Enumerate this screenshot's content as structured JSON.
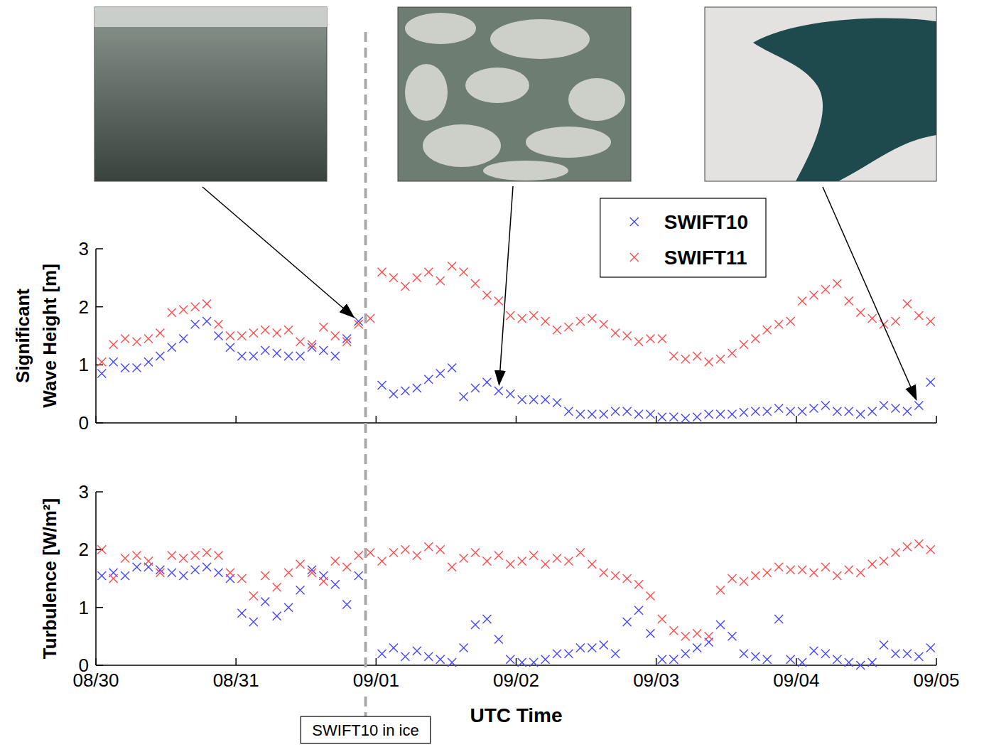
{
  "chart_data": [
    {
      "type": "scatter",
      "ylabel": [
        "Significant",
        "Wave Height [m]"
      ],
      "x": [
        1,
        3,
        5,
        7,
        9,
        11,
        13,
        15,
        17,
        19,
        21,
        23,
        25,
        27,
        29,
        31,
        33,
        35,
        37,
        39,
        41,
        43,
        45,
        47,
        49,
        51,
        53,
        55,
        57,
        59,
        61,
        63,
        65,
        67,
        69,
        71,
        73,
        75,
        77,
        79,
        81,
        83,
        85,
        87,
        89,
        91,
        93,
        95,
        97,
        99,
        101,
        103,
        105,
        107,
        109,
        111,
        113,
        115,
        117,
        119,
        121,
        123,
        125,
        127,
        129,
        131,
        133,
        135,
        137,
        139,
        141,
        143
      ],
      "xlim": [
        0,
        144
      ],
      "xticks": [
        {
          "value": 0,
          "label": "08/30"
        },
        {
          "value": 24,
          "label": "08/31"
        },
        {
          "value": 48,
          "label": "09/01"
        },
        {
          "value": 72,
          "label": "09/02"
        },
        {
          "value": 96,
          "label": "09/03"
        },
        {
          "value": 120,
          "label": "09/04"
        },
        {
          "value": 144,
          "label": "09/05"
        }
      ],
      "ylim": [
        0,
        3
      ],
      "yticks": [
        0,
        1,
        2,
        3
      ],
      "tick_labels": "y",
      "grid": false,
      "marker": "x",
      "legend": "upper right",
      "series": [
        {
          "name": "SWIFT10",
          "color": "#4646ff",
          "values": [
            0.85,
            1.05,
            0.95,
            0.95,
            1.05,
            1.15,
            1.3,
            1.45,
            1.7,
            1.75,
            1.5,
            1.3,
            1.15,
            1.15,
            1.25,
            1.2,
            1.15,
            1.15,
            1.3,
            1.25,
            1.15,
            1.45,
            1.75,
            null,
            0.65,
            0.5,
            0.55,
            0.6,
            0.75,
            0.85,
            0.95,
            0.45,
            0.6,
            0.7,
            0.55,
            0.5,
            0.4,
            0.4,
            0.4,
            0.35,
            0.2,
            0.15,
            0.15,
            0.15,
            0.2,
            0.2,
            0.15,
            0.15,
            0.1,
            0.1,
            0.08,
            0.1,
            0.15,
            0.15,
            0.15,
            0.18,
            0.2,
            0.2,
            0.25,
            0.2,
            0.2,
            0.25,
            0.3,
            0.2,
            0.2,
            0.15,
            0.2,
            0.3,
            0.25,
            0.2,
            0.3,
            0.7
          ]
        },
        {
          "name": "SWIFT11",
          "color": "#ff4d4d",
          "values": [
            1.05,
            1.35,
            1.45,
            1.4,
            1.45,
            1.55,
            1.9,
            1.95,
            2.0,
            2.05,
            1.7,
            1.5,
            1.5,
            1.55,
            1.6,
            1.55,
            1.6,
            1.4,
            1.35,
            1.65,
            1.5,
            1.4,
            1.7,
            1.8,
            2.6,
            2.5,
            2.35,
            2.5,
            2.6,
            2.45,
            2.7,
            2.6,
            2.4,
            2.2,
            2.1,
            1.85,
            1.8,
            1.85,
            1.75,
            1.6,
            1.65,
            1.75,
            1.8,
            1.7,
            1.55,
            1.5,
            1.4,
            1.45,
            1.45,
            1.15,
            1.1,
            1.15,
            1.05,
            1.1,
            1.2,
            1.35,
            1.45,
            1.6,
            1.7,
            1.75,
            2.1,
            2.2,
            2.3,
            2.4,
            2.1,
            1.9,
            1.8,
            1.7,
            1.75,
            2.05,
            1.85,
            1.75
          ]
        }
      ]
    },
    {
      "type": "scatter",
      "ylabel": [
        "Turbulence [W/m²]"
      ],
      "xlabel": "UTC Time",
      "x": [
        1,
        3,
        5,
        7,
        9,
        11,
        13,
        15,
        17,
        19,
        21,
        23,
        25,
        27,
        29,
        31,
        33,
        35,
        37,
        39,
        41,
        43,
        45,
        47,
        49,
        51,
        53,
        55,
        57,
        59,
        61,
        63,
        65,
        67,
        69,
        71,
        73,
        75,
        77,
        79,
        81,
        83,
        85,
        87,
        89,
        91,
        93,
        95,
        97,
        99,
        101,
        103,
        105,
        107,
        109,
        111,
        113,
        115,
        117,
        119,
        121,
        123,
        125,
        127,
        129,
        131,
        133,
        135,
        137,
        139,
        141,
        143
      ],
      "xlim": [
        0,
        144
      ],
      "xticks": [
        {
          "value": 0,
          "label": "08/30"
        },
        {
          "value": 24,
          "label": "08/31"
        },
        {
          "value": 48,
          "label": "09/01"
        },
        {
          "value": 72,
          "label": "09/02"
        },
        {
          "value": 96,
          "label": "09/03"
        },
        {
          "value": 120,
          "label": "09/04"
        },
        {
          "value": 144,
          "label": "09/05"
        }
      ],
      "ylim": [
        0,
        3
      ],
      "yticks": [
        0,
        1,
        2,
        3
      ],
      "grid": false,
      "marker": "x",
      "annotations": [
        {
          "text": "SWIFT10 in ice",
          "x": 46.2
        }
      ],
      "series": [
        {
          "color": "#4646ff",
          "values": [
            1.55,
            1.6,
            1.55,
            1.7,
            1.7,
            1.65,
            1.6,
            1.55,
            1.65,
            1.7,
            1.6,
            1.5,
            0.9,
            0.75,
            1.1,
            0.85,
            1.0,
            1.3,
            1.65,
            1.55,
            1.4,
            1.05,
            1.55,
            null,
            0.2,
            0.3,
            0.15,
            0.25,
            0.15,
            0.1,
            0.05,
            0.3,
            0.7,
            0.8,
            0.45,
            0.1,
            0.05,
            0.05,
            0.1,
            0.2,
            0.2,
            0.3,
            0.3,
            0.35,
            0.2,
            0.75,
            0.95,
            0.55,
            0.1,
            0.1,
            0.2,
            0.3,
            0.4,
            0.7,
            0.5,
            0.2,
            0.15,
            0.1,
            0.8,
            0.1,
            0.05,
            0.25,
            0.2,
            0.1,
            0.05,
            0.0,
            0.05,
            0.35,
            0.2,
            0.2,
            0.15,
            0.3
          ]
        },
        {
          "color": "#ff4d4d",
          "values": [
            2.0,
            1.5,
            1.85,
            1.9,
            1.8,
            1.6,
            1.9,
            1.85,
            1.9,
            1.95,
            1.9,
            1.6,
            1.5,
            1.2,
            1.55,
            1.35,
            1.6,
            1.75,
            1.6,
            1.45,
            1.8,
            1.7,
            1.9,
            1.95,
            1.8,
            1.95,
            2.0,
            1.9,
            2.05,
            2.0,
            1.7,
            1.85,
            1.95,
            1.8,
            1.9,
            1.75,
            1.8,
            1.9,
            1.75,
            1.85,
            1.8,
            1.95,
            1.75,
            1.6,
            1.55,
            1.5,
            1.4,
            1.2,
            0.8,
            0.6,
            0.5,
            0.55,
            0.5,
            1.3,
            1.5,
            1.45,
            1.55,
            1.6,
            1.7,
            1.65,
            1.65,
            1.6,
            1.7,
            1.55,
            1.65,
            1.6,
            1.75,
            1.8,
            1.95,
            2.05,
            2.1,
            2.0
          ]
        }
      ]
    }
  ]
}
